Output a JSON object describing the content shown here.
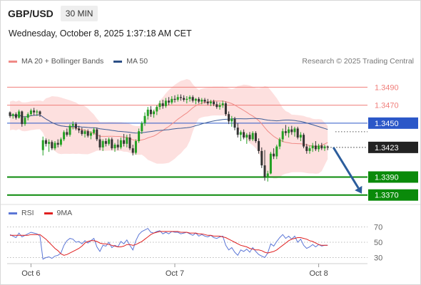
{
  "header": {
    "symbol": "GBP/USD",
    "timeframe": "30 MIN"
  },
  "datetime": "Wednesday, October 8, 2025 1:37:18 AM CET",
  "legend_main": [
    {
      "label": "MA 20 + Bollinger Bands",
      "color": "#f08a86"
    },
    {
      "label": "MA 50",
      "color": "#2c4f86"
    }
  ],
  "copyright": "Research © 2025 Trading Central",
  "legend_rsi": [
    {
      "label": "RSI",
      "color": "#5b76d6"
    },
    {
      "label": "9MA",
      "color": "#e02020"
    }
  ],
  "chart_data": [
    {
      "type": "candlestick",
      "ylim": [
        1.3365,
        1.3503
      ],
      "levels": [
        {
          "value": 1.349,
          "label": "1.3490",
          "kind": "resistance",
          "color": "#f07e7a"
        },
        {
          "value": 1.347,
          "label": "1.3470",
          "kind": "resistance",
          "color": "#f07e7a"
        },
        {
          "value": 1.345,
          "label": "1.3450",
          "kind": "pivot",
          "color": "#2b57c8"
        },
        {
          "value": 1.3423,
          "label": "1.3423",
          "kind": "last-price",
          "color": "#222222"
        },
        {
          "value": 1.339,
          "label": "1.3390",
          "kind": "support",
          "color": "#0a8a0a"
        },
        {
          "value": 1.337,
          "label": "1.3370",
          "kind": "support",
          "color": "#0a8a0a"
        }
      ],
      "x_ticks": [
        {
          "label": "Oct 6",
          "index": 7
        },
        {
          "label": "Oct 7",
          "index": 55
        },
        {
          "label": "Oct 8",
          "index": 103
        }
      ],
      "forecast_arrow": {
        "from": 1.3423,
        "to": 1.337,
        "color": "#2c5d9c"
      },
      "candles": [
        [
          1.3462,
          1.3463,
          1.3456,
          1.3458
        ],
        [
          1.3458,
          1.3461,
          1.3455,
          1.346
        ],
        [
          1.346,
          1.3462,
          1.3454,
          1.3456
        ],
        [
          1.3456,
          1.3465,
          1.3455,
          1.3463
        ],
        [
          1.3463,
          1.3464,
          1.3446,
          1.3449
        ],
        [
          1.3449,
          1.3458,
          1.3447,
          1.3456
        ],
        [
          1.3456,
          1.3462,
          1.3453,
          1.346
        ],
        [
          1.346,
          1.3466,
          1.3458,
          1.3464
        ],
        [
          1.3464,
          1.3467,
          1.3459,
          1.3462
        ],
        [
          1.3462,
          1.3465,
          1.3458,
          1.3463
        ],
        [
          1.3463,
          1.3464,
          1.3457,
          1.346
        ],
        [
          1.342,
          1.3435,
          1.3414,
          1.3431
        ],
        [
          1.3431,
          1.3433,
          1.3424,
          1.3427
        ],
        [
          1.3427,
          1.3432,
          1.3418,
          1.3429
        ],
        [
          1.3429,
          1.3431,
          1.342,
          1.3422
        ],
        [
          1.3422,
          1.343,
          1.342,
          1.3428
        ],
        [
          1.3428,
          1.3432,
          1.3423,
          1.3426
        ],
        [
          1.3426,
          1.3434,
          1.3424,
          1.3432
        ],
        [
          1.3432,
          1.3442,
          1.343,
          1.344
        ],
        [
          1.344,
          1.3444,
          1.3435,
          1.3437
        ],
        [
          1.3437,
          1.3449,
          1.3435,
          1.3447
        ],
        [
          1.3447,
          1.3452,
          1.3443,
          1.3449
        ],
        [
          1.3449,
          1.3451,
          1.3442,
          1.3444
        ],
        [
          1.3444,
          1.3447,
          1.3439,
          1.3442
        ],
        [
          1.3442,
          1.3445,
          1.3436,
          1.3438
        ],
        [
          1.3438,
          1.3443,
          1.3434,
          1.3441
        ],
        [
          1.3441,
          1.3443,
          1.3434,
          1.3436
        ],
        [
          1.3436,
          1.3441,
          1.3432,
          1.3439
        ],
        [
          1.3439,
          1.3445,
          1.3437,
          1.3443
        ],
        [
          1.3443,
          1.3445,
          1.343,
          1.3432
        ],
        [
          1.3432,
          1.3437,
          1.342,
          1.3423
        ],
        [
          1.3423,
          1.3432,
          1.3419,
          1.343
        ],
        [
          1.343,
          1.3433,
          1.3424,
          1.3427
        ],
        [
          1.3427,
          1.3434,
          1.3425,
          1.3432
        ],
        [
          1.3432,
          1.3434,
          1.342,
          1.3422
        ],
        [
          1.3422,
          1.3428,
          1.3418,
          1.3426
        ],
        [
          1.3426,
          1.3432,
          1.342,
          1.3423
        ],
        [
          1.3423,
          1.3434,
          1.3421,
          1.3431
        ],
        [
          1.3431,
          1.3438,
          1.3424,
          1.3427
        ],
        [
          1.3427,
          1.3437,
          1.3423,
          1.3434
        ],
        [
          1.3434,
          1.3438,
          1.342,
          1.3422
        ],
        [
          1.3422,
          1.3426,
          1.3414,
          1.3417
        ],
        [
          1.3417,
          1.3432,
          1.3415,
          1.343
        ],
        [
          1.343,
          1.3444,
          1.3428,
          1.3441
        ],
        [
          1.3441,
          1.3452,
          1.3438,
          1.345
        ],
        [
          1.345,
          1.3462,
          1.3447,
          1.3458
        ],
        [
          1.3458,
          1.3468,
          1.3454,
          1.3465
        ],
        [
          1.3465,
          1.3469,
          1.3457,
          1.346
        ],
        [
          1.346,
          1.3465,
          1.3456,
          1.3463
        ],
        [
          1.3463,
          1.347,
          1.3459,
          1.3468
        ],
        [
          1.3468,
          1.3475,
          1.3465,
          1.3472
        ],
        [
          1.3472,
          1.3476,
          1.3466,
          1.3469
        ],
        [
          1.3469,
          1.3478,
          1.3467,
          1.3475
        ],
        [
          1.3475,
          1.3479,
          1.347,
          1.3473
        ],
        [
          1.3473,
          1.348,
          1.3471,
          1.3477
        ],
        [
          1.3477,
          1.3481,
          1.3473,
          1.3476
        ],
        [
          1.3476,
          1.3482,
          1.3474,
          1.3479
        ],
        [
          1.3479,
          1.3482,
          1.3475,
          1.3478
        ],
        [
          1.3478,
          1.3481,
          1.3474,
          1.3476
        ],
        [
          1.3476,
          1.348,
          1.3472,
          1.3477
        ],
        [
          1.3477,
          1.3481,
          1.3474,
          1.3479
        ],
        [
          1.3479,
          1.3481,
          1.3473,
          1.3475
        ],
        [
          1.3475,
          1.3478,
          1.3471,
          1.3477
        ],
        [
          1.3477,
          1.3479,
          1.3472,
          1.3474
        ],
        [
          1.3474,
          1.3478,
          1.3471,
          1.3476
        ],
        [
          1.3476,
          1.3478,
          1.3472,
          1.3474
        ],
        [
          1.3474,
          1.3477,
          1.347,
          1.3472
        ],
        [
          1.3472,
          1.3476,
          1.3469,
          1.3474
        ],
        [
          1.3474,
          1.3476,
          1.3469,
          1.3471
        ],
        [
          1.3471,
          1.3474,
          1.3466,
          1.3468
        ],
        [
          1.3468,
          1.3473,
          1.3465,
          1.347
        ],
        [
          1.347,
          1.3475,
          1.3467,
          1.3472
        ],
        [
          1.3472,
          1.3474,
          1.3458,
          1.346
        ],
        [
          1.346,
          1.3463,
          1.3449,
          1.3452
        ],
        [
          1.3452,
          1.3458,
          1.3446,
          1.3455
        ],
        [
          1.3455,
          1.3457,
          1.3442,
          1.3445
        ],
        [
          1.3445,
          1.345,
          1.3434,
          1.3437
        ],
        [
          1.3437,
          1.3442,
          1.343,
          1.344
        ],
        [
          1.344,
          1.3443,
          1.3432,
          1.3434
        ],
        [
          1.3434,
          1.3439,
          1.3427,
          1.3437
        ],
        [
          1.3437,
          1.344,
          1.343,
          1.3432
        ],
        [
          1.3432,
          1.3441,
          1.343,
          1.3439
        ],
        [
          1.3439,
          1.3441,
          1.3428,
          1.343
        ],
        [
          1.343,
          1.3433,
          1.3416,
          1.3419
        ],
        [
          1.3419,
          1.3423,
          1.34,
          1.3403
        ],
        [
          1.3403,
          1.342,
          1.3386,
          1.339
        ],
        [
          1.339,
          1.3397,
          1.3385,
          1.3394
        ],
        [
          1.3394,
          1.3418,
          1.3393,
          1.3416
        ],
        [
          1.3416,
          1.3422,
          1.341,
          1.3413
        ],
        [
          1.3413,
          1.3426,
          1.341,
          1.3424
        ],
        [
          1.3424,
          1.3434,
          1.3421,
          1.3432
        ],
        [
          1.3432,
          1.3444,
          1.3429,
          1.3441
        ],
        [
          1.3441,
          1.3448,
          1.3436,
          1.3439
        ],
        [
          1.3439,
          1.3446,
          1.3434,
          1.3443
        ],
        [
          1.3443,
          1.3447,
          1.3437,
          1.344
        ],
        [
          1.344,
          1.3446,
          1.3435,
          1.3444
        ],
        [
          1.3444,
          1.3446,
          1.3432,
          1.3434
        ],
        [
          1.3434,
          1.344,
          1.343,
          1.3437
        ],
        [
          1.3437,
          1.3439,
          1.3422,
          1.3424
        ],
        [
          1.3424,
          1.3427,
          1.3416,
          1.3419
        ],
        [
          1.3419,
          1.3425,
          1.3416,
          1.3422
        ],
        [
          1.3422,
          1.3428,
          1.3418,
          1.3425
        ],
        [
          1.3425,
          1.343,
          1.3419,
          1.3421
        ],
        [
          1.3421,
          1.3427,
          1.3418,
          1.3425
        ],
        [
          1.3425,
          1.3428,
          1.342,
          1.3422
        ],
        [
          1.3422,
          1.3426,
          1.3419,
          1.3424
        ],
        [
          1.3424,
          1.3425,
          1.342,
          1.3423
        ]
      ]
    },
    {
      "type": "line",
      "title": "RSI",
      "ylim": [
        24,
        76
      ],
      "y_ticks": [
        70,
        50,
        30
      ],
      "series": [
        {
          "name": "RSI",
          "color": "#5b76d6",
          "values": [
            60,
            58,
            56,
            62,
            57,
            59,
            61,
            63,
            62,
            61,
            58,
            28,
            30,
            31,
            29,
            32,
            33,
            36,
            46,
            52,
            55,
            54,
            50,
            51,
            48,
            52,
            49,
            52,
            55,
            44,
            38,
            46,
            45,
            50,
            43,
            46,
            44,
            51,
            48,
            53,
            46,
            40,
            52,
            60,
            64,
            66,
            68,
            63,
            62,
            64,
            65,
            61,
            63,
            61,
            64,
            63,
            63,
            61,
            62,
            63,
            61,
            59,
            62,
            58,
            60,
            58,
            57,
            59,
            56,
            55,
            57,
            58,
            46,
            40,
            43,
            37,
            33,
            40,
            38,
            41,
            37,
            43,
            38,
            34,
            32,
            30,
            36,
            48,
            45,
            51,
            56,
            60,
            55,
            58,
            54,
            58,
            50,
            54,
            46,
            42,
            44,
            47,
            44,
            47,
            45,
            46,
            46
          ]
        },
        {
          "name": "9MA",
          "color": "#e02020",
          "values": [
            59,
            59,
            59,
            59,
            59,
            59,
            59,
            60,
            60,
            60,
            60,
            57,
            54,
            50,
            46,
            42,
            39,
            35,
            33,
            34,
            36,
            38,
            40,
            42,
            45,
            49,
            51,
            52,
            52,
            51,
            49,
            48,
            48,
            47,
            46,
            45,
            44,
            44,
            45,
            47,
            47,
            46,
            47,
            49,
            51,
            54,
            57,
            60,
            62,
            63,
            64,
            64,
            64,
            64,
            64,
            64,
            64,
            63,
            63,
            63,
            62,
            62,
            62,
            61,
            61,
            60,
            59,
            59,
            58,
            58,
            58,
            57,
            56,
            54,
            52,
            50,
            48,
            46,
            45,
            44,
            42,
            41,
            40,
            40,
            39,
            37,
            36,
            37,
            38,
            40,
            43,
            46,
            49,
            52,
            54,
            55,
            56,
            56,
            55,
            54,
            52,
            51,
            49,
            47,
            46,
            46,
            46
          ]
        }
      ]
    }
  ]
}
